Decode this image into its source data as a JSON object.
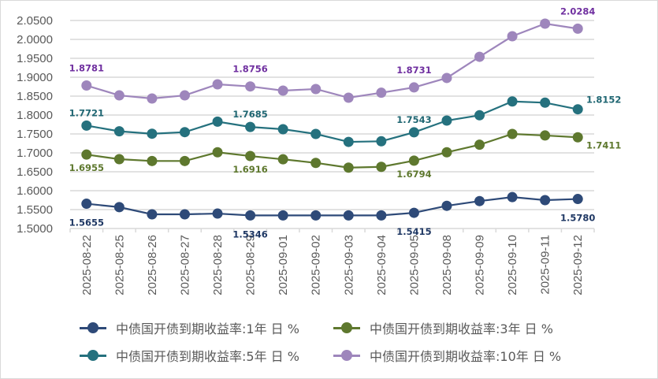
{
  "chart_data": {
    "type": "line",
    "title": "",
    "xlabel": "",
    "ylabel": "",
    "ylim": [
      1.5,
      2.05
    ],
    "ytick_step": 0.05,
    "ytick_format_decimals": 4,
    "grid": "horizontal",
    "legend_position": "bottom",
    "categories": [
      "2025-08-22",
      "2025-08-25",
      "2025-08-26",
      "2025-08-27",
      "2025-08-28",
      "2025-08-29",
      "2025-09-01",
      "2025-09-02",
      "2025-09-03",
      "2025-09-04",
      "2025-09-05",
      "2025-09-08",
      "2025-09-09",
      "2025-09-10",
      "2025-09-11",
      "2025-09-12"
    ],
    "series": [
      {
        "name": "中债国开债到期收益率:1年 日 %",
        "color": "#2E4A78",
        "label_color": "#1F3864",
        "values": [
          1.5655,
          1.5565,
          1.5375,
          1.5375,
          1.5395,
          1.5346,
          1.5346,
          1.5346,
          1.5346,
          1.5346,
          1.5415,
          1.56,
          1.5725,
          1.583,
          1.575,
          1.578
        ],
        "data_labels": [
          "1.5655",
          "",
          "",
          "",
          "",
          "1.5346",
          "",
          "",
          "",
          "",
          "1.5415",
          "",
          "",
          "",
          "",
          "1.5780"
        ]
      },
      {
        "name": "中债国开债到期收益率:3年 日 %",
        "color": "#5E782E",
        "label_color": "#5E782E",
        "values": [
          1.6955,
          1.6833,
          1.6785,
          1.6785,
          1.7015,
          1.6916,
          1.683,
          1.6735,
          1.661,
          1.663,
          1.6794,
          1.7015,
          1.7215,
          1.75,
          1.746,
          1.7411
        ],
        "data_labels": [
          "1.6955",
          "",
          "",
          "",
          "",
          "1.6916",
          "",
          "",
          "",
          "",
          "1.6794",
          "",
          "",
          "",
          "",
          "1.7411"
        ]
      },
      {
        "name": "中债国开债到期收益率:5年 日 %",
        "color": "#25717E",
        "label_color": "#1F6672",
        "values": [
          1.7721,
          1.757,
          1.7506,
          1.7548,
          1.7825,
          1.7685,
          1.7625,
          1.75,
          1.729,
          1.7306,
          1.7543,
          1.7854,
          1.7994,
          1.836,
          1.8327,
          1.8152
        ],
        "data_labels": [
          "1.7721",
          "",
          "",
          "",
          "",
          "1.7685",
          "",
          "",
          "",
          "",
          "1.7543",
          "",
          "",
          "",
          "",
          "1.8152"
        ]
      },
      {
        "name": "中债国开债到期收益率:10年 日 %",
        "color": "#9E86BC",
        "label_color": "#7030A0",
        "values": [
          1.8781,
          1.852,
          1.8438,
          1.852,
          1.8813,
          1.8756,
          1.8646,
          1.8688,
          1.8458,
          1.859,
          1.8731,
          1.898,
          1.954,
          2.0083,
          2.0417,
          2.0284
        ],
        "data_labels": [
          "1.8781",
          "",
          "",
          "",
          "",
          "1.8756",
          "",
          "",
          "",
          "",
          "1.8731",
          "",
          "",
          "",
          "",
          "2.0284"
        ]
      }
    ]
  }
}
